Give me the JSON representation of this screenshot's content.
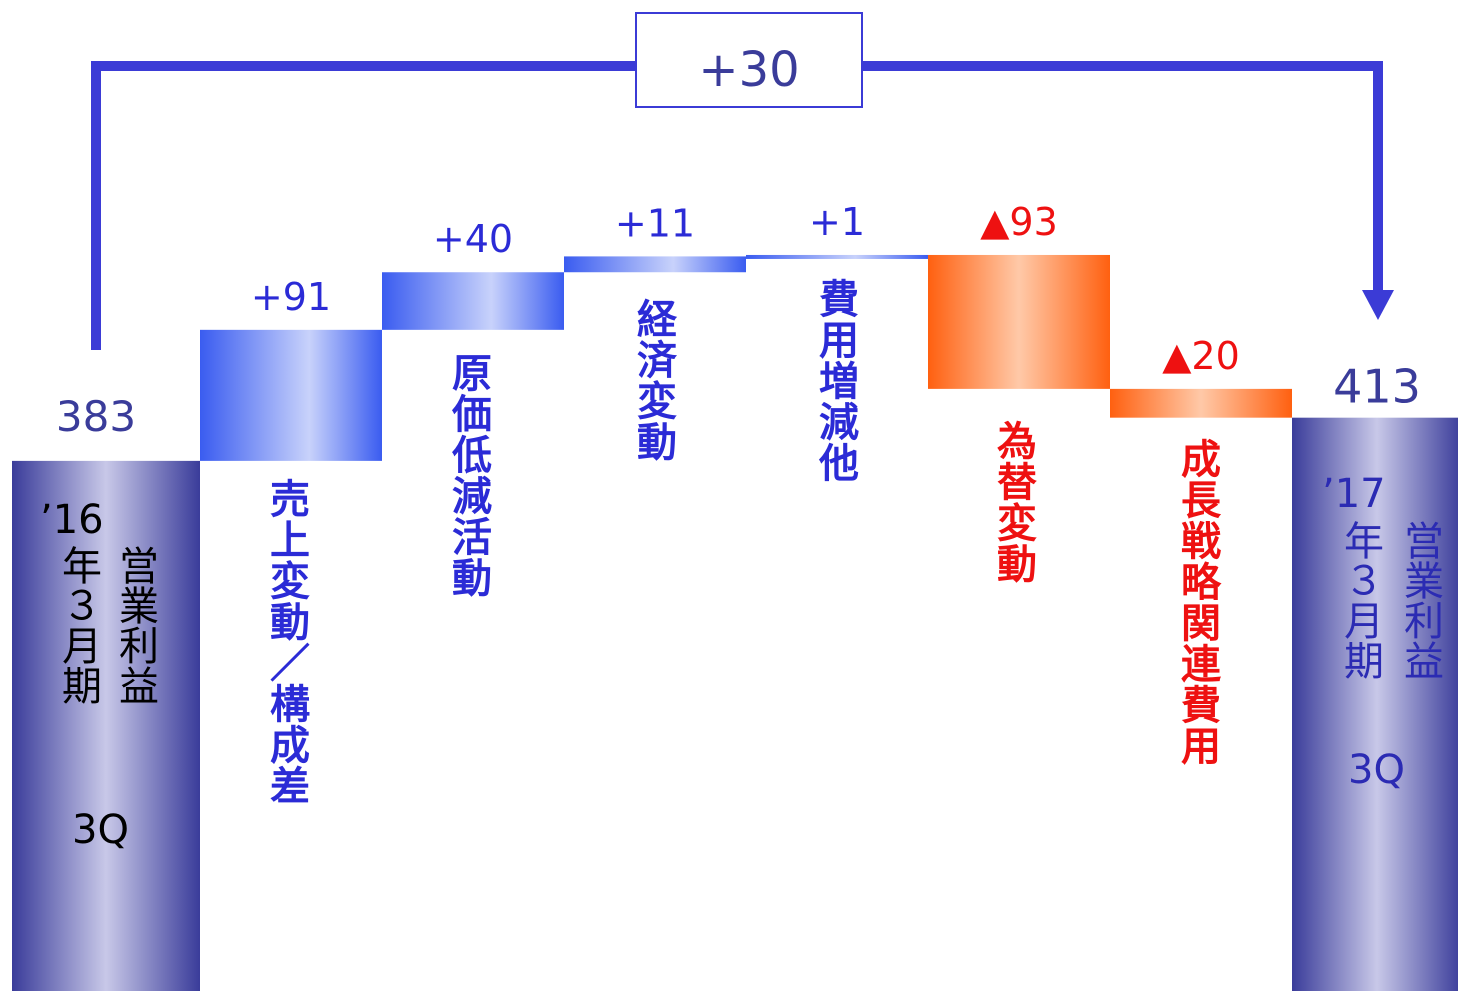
{
  "chart_data": {
    "type": "waterfall",
    "start": {
      "value": 383,
      "label": "383",
      "period_line1": "’16",
      "period_line2": "年３月期",
      "metric": "営業利益",
      "quarter": "3Q"
    },
    "end": {
      "value": 413,
      "label": "413",
      "period_line1": "’17",
      "period_line2": "年３月期",
      "metric": "営業利益",
      "quarter": "3Q"
    },
    "total_change": {
      "value": 30,
      "label": "+30"
    },
    "steps": [
      {
        "name": "売上変動／構成差",
        "value": 91,
        "label": "+91",
        "sign": "positive"
      },
      {
        "name": "原価低減活動",
        "value": 40,
        "label": "+40",
        "sign": "positive"
      },
      {
        "name": "経済変動",
        "value": 11,
        "label": "+11",
        "sign": "positive"
      },
      {
        "name": "費用増減他",
        "value": 1,
        "label": "+1",
        "sign": "positive"
      },
      {
        "name": "為替変動",
        "value": -93,
        "label": "▲93",
        "sign": "negative"
      },
      {
        "name": "成長戦略関連費用",
        "value": -20,
        "label": "▲20",
        "sign": "negative"
      }
    ]
  },
  "colors": {
    "positive": "#3f5ff0",
    "negative": "#ff6a1a",
    "total": "#3a3c9a",
    "text_positive": "#2b2bd6",
    "text_negative": "#ee1111",
    "bracket": "#3b3bd6"
  }
}
